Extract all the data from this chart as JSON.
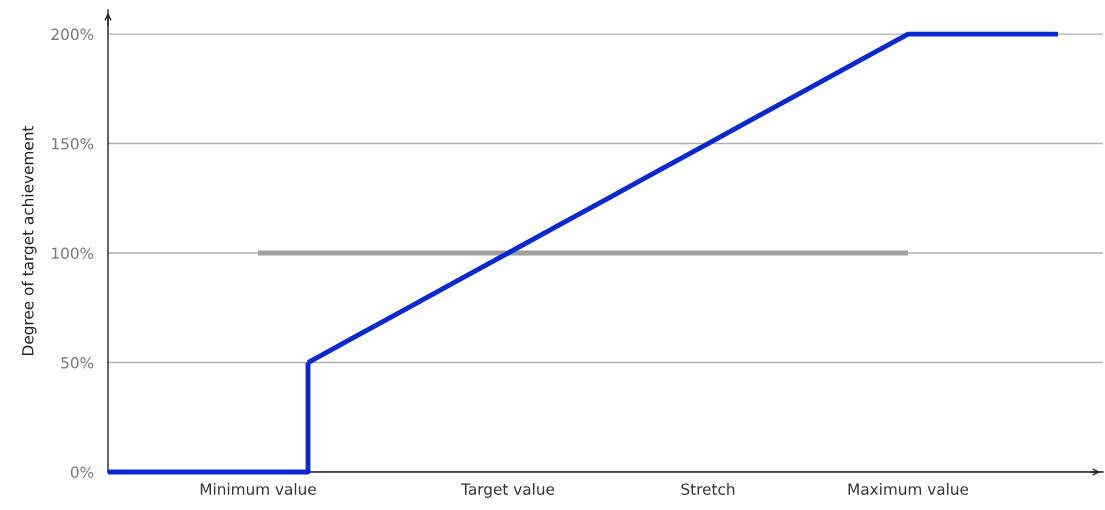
{
  "chart_data": {
    "type": "line",
    "ylabel": "Degree of target achievement",
    "categories": [
      null,
      null,
      null,
      "Minimum value",
      null,
      null,
      null,
      null,
      "Target value",
      null,
      null,
      null,
      "Stretch",
      null,
      null,
      null,
      "Maximum value",
      null,
      null,
      null
    ],
    "series": [
      {
        "type": "step",
        "color": "#0a28d2",
        "values": [
          0,
          0,
          0,
          0,
          50,
          null,
          null,
          null,
          null,
          null,
          null,
          null,
          null,
          null,
          null,
          null,
          null,
          null,
          null,
          null
        ]
      },
      {
        "color": "#0a28d2",
        "values": [
          null,
          null,
          null,
          null,
          50,
          62.5,
          75,
          87.5,
          100,
          112.5,
          125,
          137.5,
          150,
          162.5,
          175,
          187.5,
          200,
          200,
          200,
          200
        ]
      },
      {
        "color": "#a0a0a0",
        "values": [
          null,
          null,
          null,
          100,
          100,
          100,
          100,
          100,
          100,
          100,
          100,
          100,
          100,
          100,
          100,
          100,
          100,
          null,
          null,
          null
        ]
      }
    ],
    "ylim": [
      0,
      211
    ],
    "yticks": [
      {
        "value": 0,
        "label": "0%"
      },
      {
        "value": 50,
        "label": "50%"
      },
      {
        "value": 100,
        "label": "100%"
      },
      {
        "value": 150,
        "label": "150%"
      },
      {
        "value": 200,
        "label": "200%"
      }
    ],
    "grid": "y",
    "marker": "none",
    "line_style": "solid"
  }
}
